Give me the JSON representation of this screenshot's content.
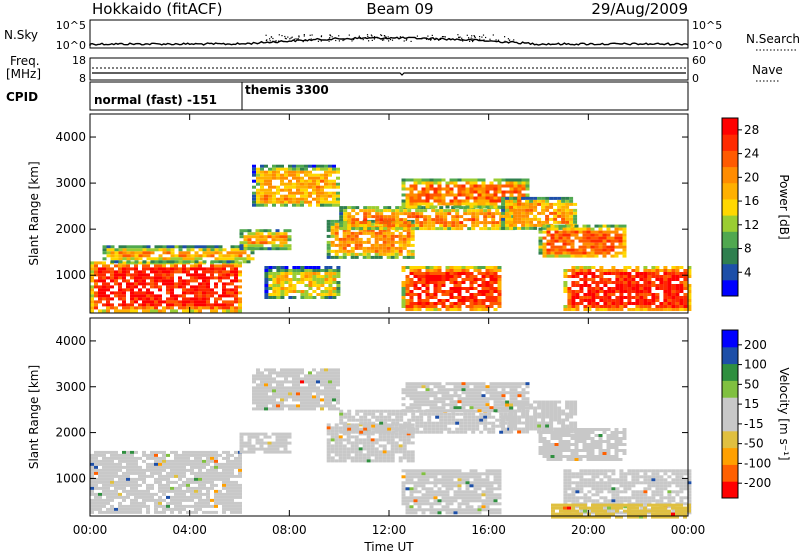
{
  "header": {
    "station": "Hokkaido (fitACF)",
    "beam": "Beam 09",
    "date": "29/Aug/2009"
  },
  "strip": {
    "nsky_label": "N.Sky",
    "nsky_ticks": [
      "10^5",
      "10^0"
    ],
    "nsearch_label": "N.Search",
    "nsearch_ticks": [
      "10^5",
      "10^0"
    ],
    "freq_label_1": "Freq.",
    "freq_label_2": "[MHz]",
    "freq_ticks": [
      "18",
      "8"
    ],
    "nave_label": "Nave",
    "nave_ticks": [
      "60",
      "0"
    ],
    "cpid_label": "CPID",
    "cpid_segments": [
      {
        "label": "normal (fast) -151",
        "start_hour": 0,
        "end_hour": 6.1
      },
      {
        "label": "themis 3300",
        "start_hour": 6.1,
        "end_hour": 24
      }
    ]
  },
  "chart_data": [
    {
      "type": "heatmap",
      "title": "",
      "xlabel": "Time UT",
      "ylabel": "Slant Range [km]",
      "x_ticks": [
        "00:00",
        "04:00",
        "08:00",
        "12:00",
        "16:00",
        "20:00",
        "00:00"
      ],
      "x_range_hours": [
        0,
        24
      ],
      "y_ticks": [
        1000,
        2000,
        3000,
        4000
      ],
      "ylim": [
        180,
        4500
      ],
      "colorbar": {
        "label": "Power [dB]",
        "ticks": [
          "4",
          "8",
          "12",
          "16",
          "20",
          "24",
          "28"
        ],
        "range": [
          0,
          30
        ],
        "colors": [
          "#0000ff",
          "#1d4fa8",
          "#2f7f4f",
          "#50a850",
          "#9acd32",
          "#ffd700",
          "#ffb000",
          "#ff8c00",
          "#ff5a00",
          "#ff2a00",
          "#ff0000"
        ]
      },
      "echo_regions": [
        {
          "t0": 0.0,
          "t1": 6.0,
          "r0": 250,
          "r1": 1300,
          "value": 27
        },
        {
          "t0": 0.5,
          "t1": 6.5,
          "r0": 1300,
          "r1": 1650,
          "value": 19
        },
        {
          "t0": 6.0,
          "t1": 8.0,
          "r0": 1600,
          "r1": 2000,
          "value": 20
        },
        {
          "t0": 6.5,
          "t1": 10.0,
          "r0": 2500,
          "r1": 3400,
          "value": 18
        },
        {
          "t0": 7.0,
          "t1": 10.0,
          "r0": 500,
          "r1": 1200,
          "value": 16
        },
        {
          "t0": 9.5,
          "t1": 13.0,
          "r0": 1400,
          "r1": 2200,
          "value": 20
        },
        {
          "t0": 10.0,
          "t1": 17.0,
          "r0": 2000,
          "r1": 2500,
          "value": 21
        },
        {
          "t0": 12.5,
          "t1": 17.5,
          "r0": 2500,
          "r1": 3100,
          "value": 22
        },
        {
          "t0": 12.5,
          "t1": 16.5,
          "r0": 250,
          "r1": 1200,
          "value": 26
        },
        {
          "t0": 16.5,
          "t1": 19.5,
          "r0": 2000,
          "r1": 2700,
          "value": 19
        },
        {
          "t0": 18.0,
          "t1": 21.5,
          "r0": 1400,
          "r1": 2100,
          "value": 23
        },
        {
          "t0": 19.0,
          "t1": 24.0,
          "r0": 250,
          "r1": 1200,
          "value": 27
        }
      ]
    },
    {
      "type": "heatmap",
      "title": "",
      "xlabel": "Time UT",
      "ylabel": "Slant Range [km]",
      "x_ticks": [
        "00:00",
        "04:00",
        "08:00",
        "12:00",
        "16:00",
        "20:00",
        "00:00"
      ],
      "x_range_hours": [
        0,
        24
      ],
      "y_ticks": [
        1000,
        2000,
        3000,
        4000
      ],
      "ylim": [
        180,
        4500
      ],
      "colorbar": {
        "label": "Velocity [m s⁻¹]",
        "ticks": [
          "200",
          "100",
          "50",
          "15",
          "-15",
          "-50",
          "-100",
          "-200"
        ],
        "range": [
          -250,
          250
        ],
        "colors": [
          "#ff0000",
          "#ff6000",
          "#ffa000",
          "#e0c040",
          "#c8c8c8",
          "#c8c8c8",
          "#80c040",
          "#2f8f3f",
          "#1d4fa8",
          "#0000ff"
        ]
      },
      "echo_regions": [
        {
          "t0": 0.0,
          "t1": 6.0,
          "r0": 250,
          "r1": 1600,
          "value": 0
        },
        {
          "t0": 6.0,
          "t1": 8.0,
          "r0": 1600,
          "r1": 2000,
          "value": 0
        },
        {
          "t0": 6.5,
          "t1": 10.0,
          "r0": 2500,
          "r1": 3400,
          "value": -40
        },
        {
          "t0": 9.5,
          "t1": 13.0,
          "r0": 1400,
          "r1": 2200,
          "value": 0
        },
        {
          "t0": 10.0,
          "t1": 17.0,
          "r0": 2000,
          "r1": 2500,
          "value": 0
        },
        {
          "t0": 12.5,
          "t1": 17.5,
          "r0": 2500,
          "r1": 3100,
          "value": 0
        },
        {
          "t0": 12.5,
          "t1": 16.5,
          "r0": 250,
          "r1": 1200,
          "value": 0
        },
        {
          "t0": 16.5,
          "t1": 19.5,
          "r0": 2000,
          "r1": 2700,
          "value": 0
        },
        {
          "t0": 18.0,
          "t1": 21.5,
          "r0": 1400,
          "r1": 2100,
          "value": 0
        },
        {
          "t0": 19.0,
          "t1": 24.0,
          "r0": 250,
          "r1": 1200,
          "value": 0
        },
        {
          "t0": 18.5,
          "t1": 24.0,
          "r0": 180,
          "r1": 450,
          "value": -70
        }
      ]
    }
  ]
}
